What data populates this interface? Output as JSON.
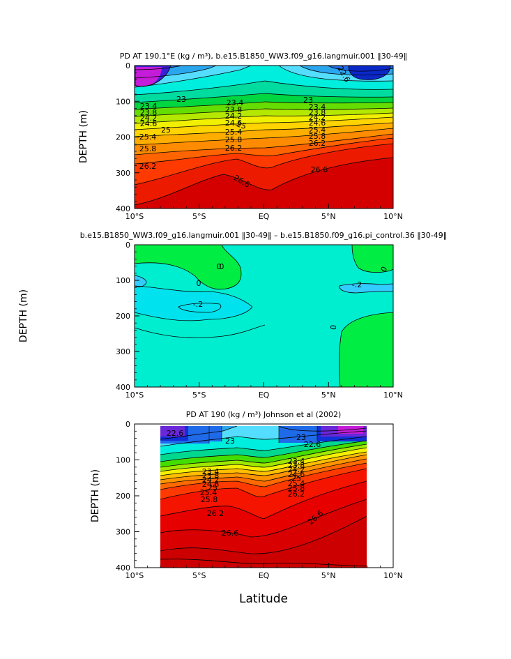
{
  "chart_data": [
    {
      "type": "heatmap",
      "title": "PD AT 190.1°E (kg / m³), b.e15.B1850_WW3.f09_g16.langmuir.001 ‖30-49‖",
      "xlabel": "",
      "ylabel": "DEPTH (m)",
      "x_ticks": [
        "10°S",
        "5°S",
        "EQ",
        "5°N",
        "10°N"
      ],
      "y_ticks": [
        "0",
        "100",
        "200",
        "300",
        "400"
      ],
      "xlim": [
        -10,
        10
      ],
      "ylim": [
        0,
        400
      ],
      "contour_labels": [
        "22.6",
        "23",
        "23.4",
        "23.8",
        "24.2",
        "24.6",
        "25",
        "25.4",
        "25.8",
        "26.2",
        "26.6",
        "23",
        "23.4",
        "23.8",
        "24.2",
        "24.6",
        "25.4",
        "25.8",
        "26.2",
        "26.6",
        "23.4",
        "23.8",
        "24.2",
        "24.6",
        "25",
        "25.4",
        "25.8",
        "26.2"
      ],
      "profiles": [
        {
          "lat": -10,
          "depth": [
            0,
            40,
            70,
            100,
            130,
            150,
            170,
            190,
            210,
            240,
            290,
            350,
            400
          ],
          "pd": [
            21.5,
            22.4,
            23.0,
            23.4,
            24.0,
            24.6,
            25.0,
            25.4,
            25.8,
            26.2,
            26.5,
            26.7,
            26.8
          ]
        },
        {
          "lat": -5,
          "depth": [
            0,
            40,
            70,
            100,
            130,
            150,
            170,
            190,
            210,
            240,
            290,
            350,
            400
          ],
          "pd": [
            22.6,
            22.8,
            23.0,
            23.4,
            23.8,
            24.2,
            24.8,
            25.4,
            25.8,
            26.2,
            26.5,
            26.6,
            26.7
          ]
        },
        {
          "lat": 0,
          "depth": [
            0,
            40,
            70,
            100,
            130,
            150,
            170,
            190,
            210,
            240,
            290,
            350,
            400
          ],
          "pd": [
            22.9,
            23.0,
            23.2,
            23.4,
            23.8,
            24.2,
            24.6,
            25.0,
            25.4,
            25.8,
            26.2,
            26.5,
            26.6
          ]
        },
        {
          "lat": 5,
          "depth": [
            0,
            40,
            70,
            100,
            130,
            150,
            170,
            190,
            210,
            240,
            290,
            350,
            400
          ],
          "pd": [
            22.4,
            22.6,
            22.9,
            23.3,
            23.7,
            24.2,
            24.6,
            25.2,
            25.6,
            26.0,
            26.4,
            26.6,
            26.7
          ]
        },
        {
          "lat": 10,
          "depth": [
            0,
            40,
            70,
            100,
            130,
            150,
            170,
            190,
            210,
            240,
            290,
            350,
            400
          ],
          "pd": [
            22.0,
            22.4,
            22.8,
            23.2,
            23.8,
            24.4,
            24.9,
            25.4,
            25.8,
            26.2,
            26.6,
            26.8,
            26.9
          ]
        }
      ]
    },
    {
      "type": "heatmap",
      "title": "b.e15.B1850_WW3.f09_g16.langmuir.001 ‖30-49‖ – b.e15.B1850.f09_g16.pi_control.36 ‖30-49‖",
      "xlabel": "",
      "ylabel": "DEPTH (m)",
      "x_ticks": [
        "10°S",
        "5°S",
        "EQ",
        "5°N",
        "10°N"
      ],
      "y_ticks": [
        "0",
        "100",
        "200",
        "300",
        "400"
      ],
      "xlim": [
        -10,
        10
      ],
      "ylim": [
        0,
        400
      ],
      "contour_labels": [
        "0",
        "0",
        "-.2",
        "0",
        "-.2",
        "0",
        "0"
      ]
    },
    {
      "type": "heatmap",
      "title": "PD AT 190 (kg / m³) Johnson et al (2002)",
      "xlabel": "Latitude",
      "ylabel": "DEPTH (m)",
      "x_ticks": [
        "10°S",
        "5°S",
        "EQ",
        "5°N",
        "10°N"
      ],
      "y_ticks": [
        "0",
        "100",
        "200",
        "300",
        "400"
      ],
      "xlim": [
        -10,
        10
      ],
      "ylim": [
        0,
        400
      ],
      "data_xlim": [
        -8,
        8
      ],
      "data_ylim": [
        10,
        400
      ],
      "contour_labels": [
        "22.6",
        "22.6",
        "23",
        "23.4",
        "23.8",
        "24.2",
        "24.6",
        "25",
        "25.4",
        "25.8",
        "26.2",
        "26.6",
        "23",
        "23.4",
        "23.8",
        "24.2",
        "24.6",
        "25",
        "25.4",
        "25.8",
        "26.2",
        "26.6"
      ]
    }
  ]
}
